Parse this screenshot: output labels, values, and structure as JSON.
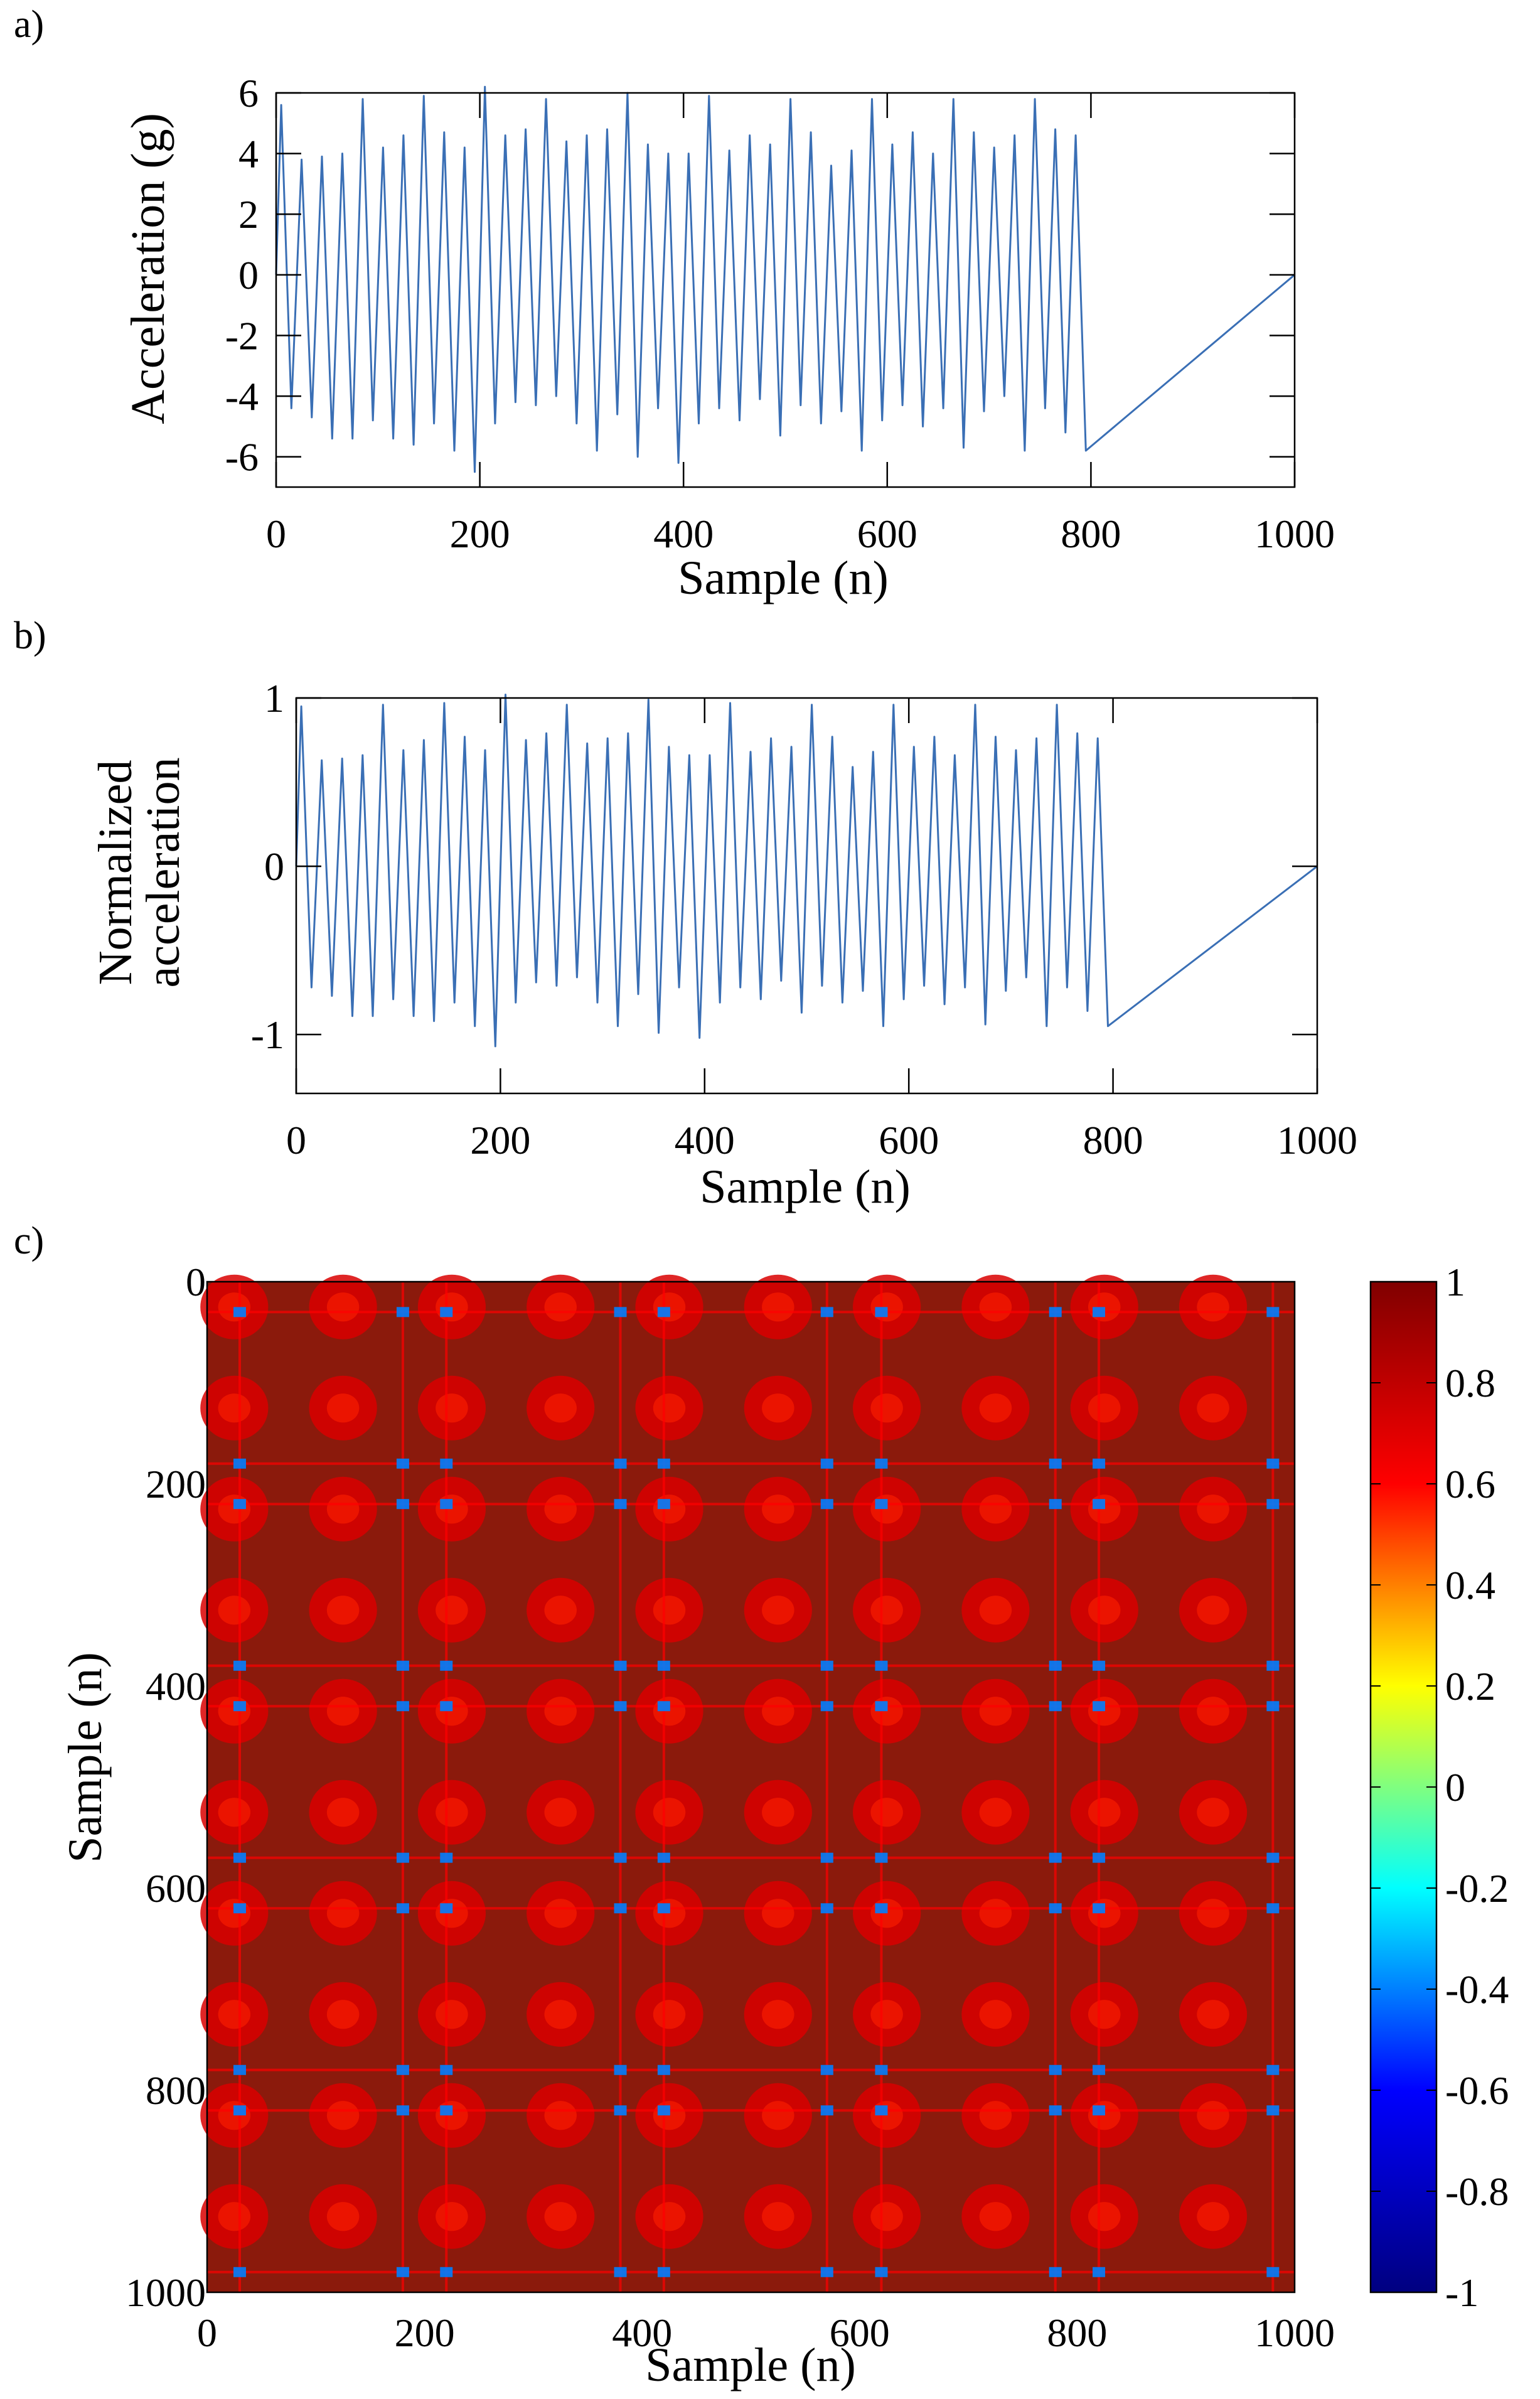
{
  "figure": {
    "panel_labels": [
      "a)",
      "b)",
      "c)"
    ]
  },
  "chart_data": [
    {
      "type": "line",
      "panel": "a)",
      "xlabel": "Sample (n)",
      "ylabel": "Acceleration (g)",
      "xlim": [
        0,
        1000
      ],
      "ylim": [
        -7,
        6
      ],
      "xticks": [
        0,
        200,
        400,
        600,
        800,
        1000
      ],
      "yticks": [
        -6,
        -4,
        -2,
        0,
        2,
        4,
        6
      ],
      "line_color": "#3a6fb5",
      "cycle_period": 20,
      "peaks": [
        5.6,
        3.8,
        3.9,
        4.0,
        5.8,
        4.2,
        4.6,
        5.9,
        4.7,
        4.2,
        6.2,
        4.6,
        4.8,
        5.8,
        4.4,
        4.6,
        4.8,
        6.0,
        4.3,
        4.0,
        4.0,
        5.9,
        4.1,
        4.6,
        4.3,
        5.8,
        4.7,
        3.6,
        4.1,
        5.8,
        4.3,
        4.7,
        4.0,
        5.8,
        4.7,
        4.2,
        4.6,
        5.8,
        4.8,
        4.6
      ],
      "troughs": [
        -4.4,
        -4.7,
        -5.4,
        -5.4,
        -4.8,
        -5.4,
        -5.6,
        -4.9,
        -5.8,
        -6.5,
        -4.9,
        -4.2,
        -4.3,
        -4.0,
        -4.9,
        -5.8,
        -4.6,
        -6.0,
        -4.4,
        -6.2,
        -4.9,
        -4.4,
        -4.8,
        -4.1,
        -5.3,
        -4.3,
        -4.9,
        -4.5,
        -5.8,
        -4.8,
        -4.3,
        -5.0,
        -4.4,
        -5.7,
        -4.5,
        -4.0,
        -5.8,
        -4.4,
        -5.2,
        -5.8
      ],
      "grid": false
    },
    {
      "type": "line",
      "panel": "b)",
      "xlabel": "Sample (n)",
      "ylabel": "Normalized\nacceleration",
      "xlim": [
        0,
        1000
      ],
      "ylim": [
        -1.35,
        1.0
      ],
      "xticks": [
        0,
        200,
        400,
        600,
        800,
        1000
      ],
      "yticks": [
        -1,
        0,
        1
      ],
      "line_color": "#3a6fb5",
      "cycle_period": 20,
      "peaks": [
        0.95,
        0.63,
        0.64,
        0.66,
        0.96,
        0.69,
        0.75,
        0.97,
        0.77,
        0.69,
        1.02,
        0.75,
        0.79,
        0.96,
        0.73,
        0.76,
        0.79,
        0.99,
        0.71,
        0.66,
        0.66,
        0.97,
        0.68,
        0.76,
        0.71,
        0.96,
        0.77,
        0.59,
        0.68,
        0.96,
        0.71,
        0.77,
        0.66,
        0.96,
        0.77,
        0.69,
        0.76,
        0.96,
        0.79,
        0.76
      ],
      "troughs": [
        -0.72,
        -0.77,
        -0.89,
        -0.89,
        -0.79,
        -0.89,
        -0.92,
        -0.81,
        -0.95,
        -1.07,
        -0.81,
        -0.69,
        -0.71,
        -0.66,
        -0.81,
        -0.95,
        -0.76,
        -0.99,
        -0.72,
        -1.02,
        -0.81,
        -0.72,
        -0.79,
        -0.68,
        -0.87,
        -0.71,
        -0.81,
        -0.74,
        -0.95,
        -0.79,
        -0.71,
        -0.82,
        -0.72,
        -0.94,
        -0.74,
        -0.66,
        -0.95,
        -0.72,
        -0.86,
        -0.95
      ],
      "grid": false
    },
    {
      "type": "heatmap",
      "panel": "c)",
      "xlabel": "Sample (n)",
      "ylabel": "Sample (n)",
      "xlim": [
        0,
        1000
      ],
      "ylim": [
        1000,
        0
      ],
      "xticks": [
        0,
        200,
        400,
        600,
        800,
        1000
      ],
      "yticks": [
        0,
        200,
        400,
        600,
        800,
        1000
      ],
      "colorbar": {
        "min": -1,
        "max": 1,
        "ticks": [
          "1",
          "0.8",
          "0.6",
          "0.4",
          "0.2",
          "0",
          "-0.2",
          "-0.4",
          "-0.6",
          "-0.8",
          "-1"
        ],
        "colormap": "jet",
        "stops": [
          "#000080",
          "#0000ff",
          "#00ffff",
          "#ffff00",
          "#ff0000",
          "#800000"
        ]
      },
      "blob_spacing": 100,
      "low_correlation_lines": [
        30,
        180,
        220,
        380,
        420,
        570,
        620,
        780,
        820,
        980
      ],
      "minimum_value_approx": -0.4,
      "grid": false
    }
  ]
}
